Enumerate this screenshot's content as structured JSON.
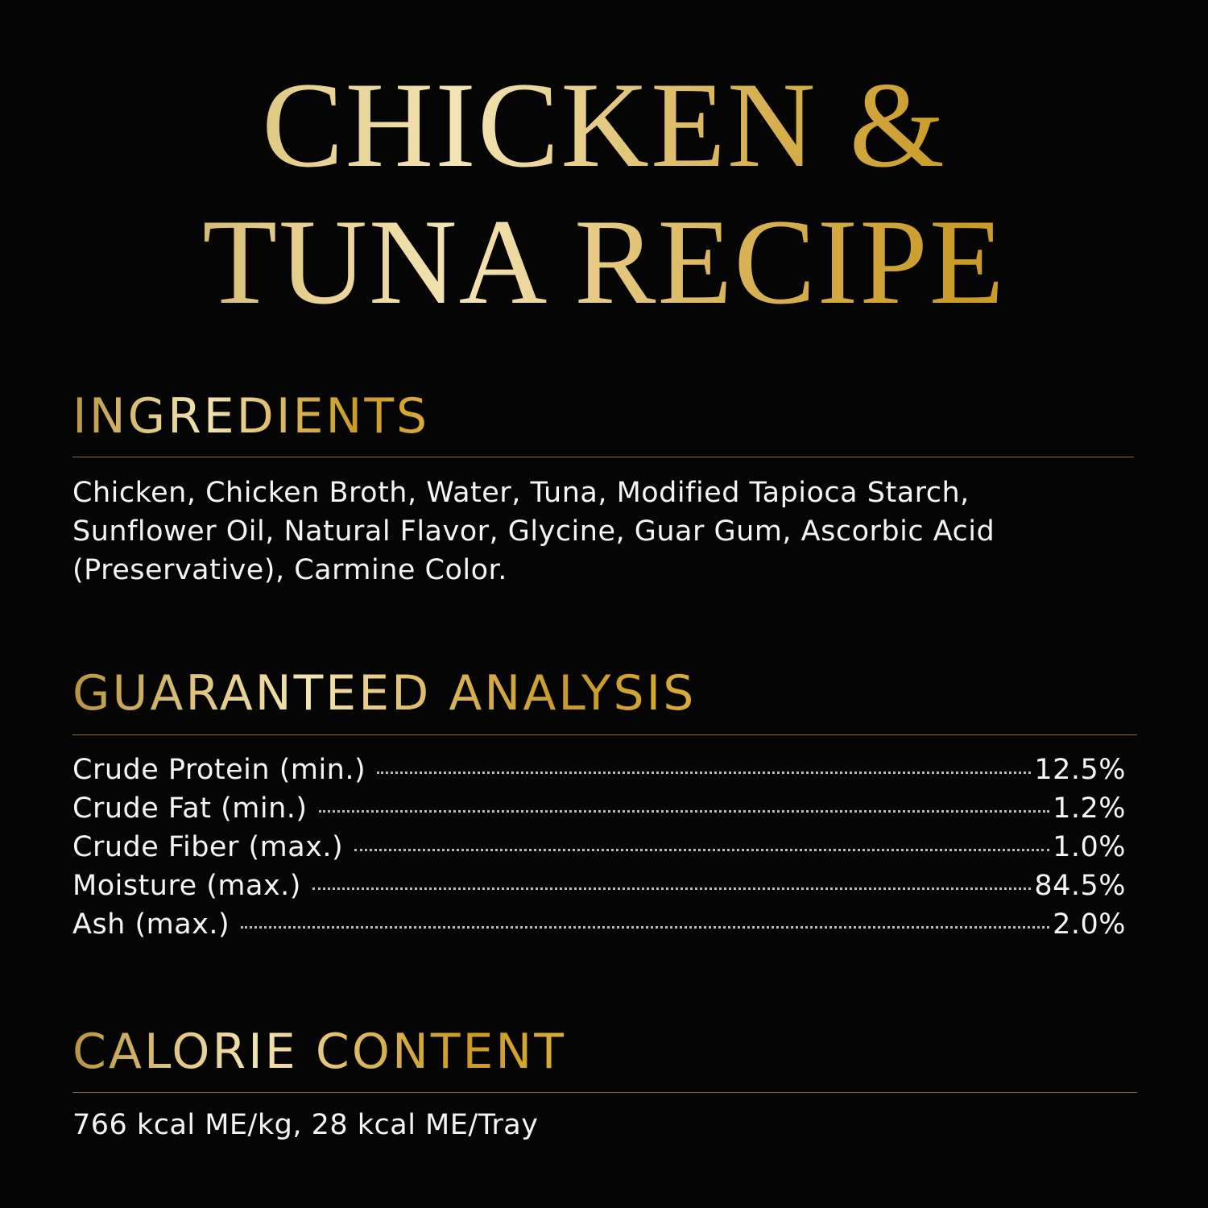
{
  "title": {
    "line1": "CHICKEN &",
    "line2": "TUNA RECIPE"
  },
  "ingredients": {
    "heading": "INGREDIENTS",
    "lines": [
      "Chicken, Chicken Broth, Water, Tuna, Modified Tapioca Starch,",
      "Sunflower Oil, Natural Flavor, Glycine, Guar Gum, Ascorbic Acid",
      "(Preservative), Carmine Color."
    ]
  },
  "analysis": {
    "heading": "GUARANTEED ANALYSIS",
    "rows": [
      {
        "label": "Crude Protein (min.)",
        "value": "12.5%"
      },
      {
        "label": "Crude Fat (min.)",
        "value": "1.2%"
      },
      {
        "label": "Crude Fiber (max.)",
        "value": "1.0%"
      },
      {
        "label": "Moisture (max.)",
        "value": "84.5%"
      },
      {
        "label": "Ash (max.)",
        "value": "2.0%"
      }
    ]
  },
  "calorie": {
    "heading": "CALORIE CONTENT",
    "text": "766 kcal ME/kg, 28 kcal ME/Tray"
  },
  "colors": {
    "background": "#050505",
    "gold": "#d4a52a",
    "gold_light": "#f3e4b4",
    "rule": "#8a6a3a"
  }
}
